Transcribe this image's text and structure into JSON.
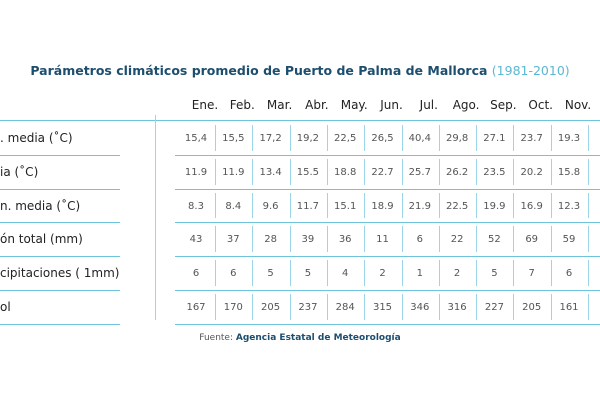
{
  "title": {
    "main": "Parámetros climáticos promedio de Puerto de Palma de Mallorca",
    "period": "(1981-2010)"
  },
  "table": {
    "header": [
      "Ene.",
      "Feb.",
      "Mar.",
      "Abr.",
      "May.",
      "Jun.",
      "Jul.",
      "Ago.",
      "Sep.",
      "Oct.",
      "Nov."
    ],
    "rows": [
      {
        "label": ". media (˚C)",
        "cells": [
          "15,4",
          "15,5",
          "17,2",
          "19,2",
          "22,5",
          "26,5",
          "40,4",
          "29,8",
          "27.1",
          "23.7",
          "19.3"
        ]
      },
      {
        "label": "ia (˚C)",
        "cells": [
          "11.9",
          "11.9",
          "13.4",
          "15.5",
          "18.8",
          "22.7",
          "25.7",
          "26.2",
          "23.5",
          "20.2",
          "15.8"
        ]
      },
      {
        "label": "n. media (˚C)",
        "cells": [
          "8.3",
          "8.4",
          "9.6",
          "11.7",
          "15.1",
          "18.9",
          "21.9",
          "22.5",
          "19.9",
          "16.9",
          "12.3"
        ]
      },
      {
        "label": "ón total (mm)",
        "cells": [
          "43",
          "37",
          "28",
          "39",
          "36",
          "11",
          "6",
          "22",
          "52",
          "69",
          "59"
        ]
      },
      {
        "label": "cipitaciones ( 1mm)",
        "cells": [
          "6",
          "6",
          "5",
          "5",
          "4",
          "2",
          "1",
          "2",
          "5",
          "7",
          "6"
        ]
      },
      {
        "label": "ol",
        "cells": [
          "167",
          "170",
          "205",
          "237",
          "284",
          "315",
          "346",
          "316",
          "227",
          "205",
          "161"
        ]
      }
    ]
  },
  "source": {
    "label": "Fuente:",
    "name": "Agencia Estatal de Meteorología"
  }
}
